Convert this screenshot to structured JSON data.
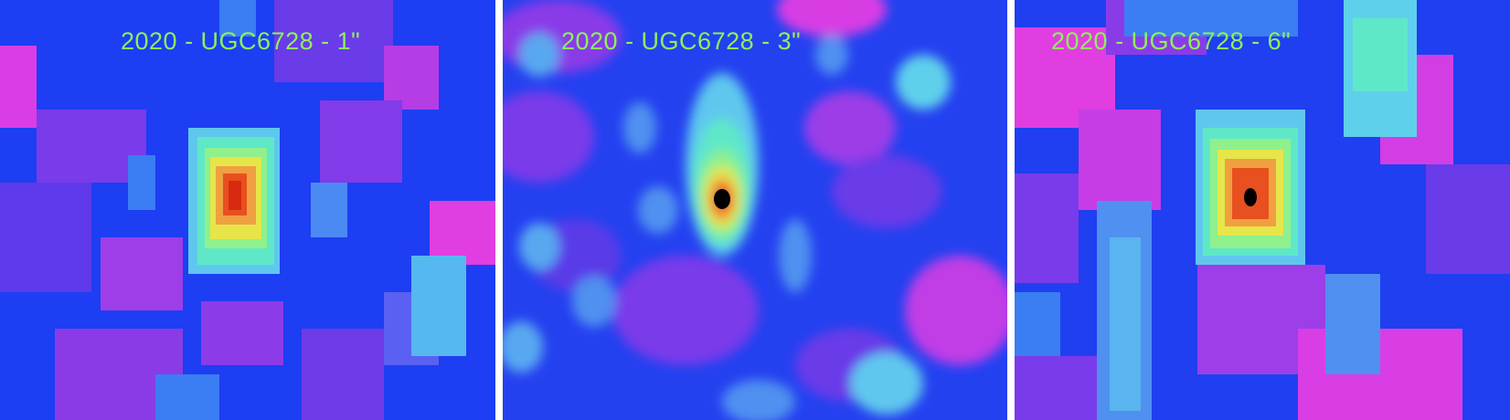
{
  "panels": [
    {
      "label": "2020 - UGC6728 - 1\"",
      "colors": {
        "background": "#1a3cf5",
        "noise_low": "#8a2be8",
        "noise_high": "#45a7f0",
        "peak": "#e8501f",
        "core": "#000000"
      }
    },
    {
      "label": "2020 - UGC6728 - 3\"",
      "colors": {
        "background": "#1a3cf5",
        "noise_low": "#8a2be8",
        "noise_high": "#45a7f0",
        "peak": "#e8501f",
        "core": "#000000"
      }
    },
    {
      "label": "2020 - UGC6728 - 6\"",
      "colors": {
        "background": "#1a3cf5",
        "noise_low": "#8a2be8",
        "noise_high": "#45a7f0",
        "peak": "#e8501f",
        "core": "#000000"
      }
    }
  ]
}
